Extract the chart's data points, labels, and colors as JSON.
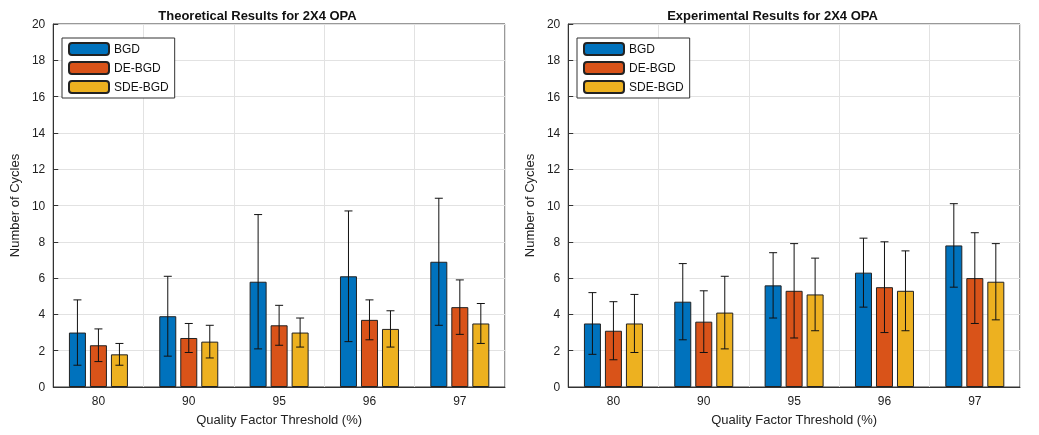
{
  "chart_data": [
    {
      "type": "bar",
      "title": "Theoretical Results for 2X4 OPA",
      "xlabel": "Quality Factor Threshold (%)",
      "ylabel": "Number of Cycles",
      "categories": [
        "80",
        "90",
        "95",
        "96",
        "97"
      ],
      "ylim": [
        0,
        20
      ],
      "yticks": [
        0,
        2,
        4,
        6,
        8,
        10,
        12,
        14,
        16,
        18,
        20
      ],
      "grid": true,
      "legend": "top left",
      "series": [
        {
          "name": "BGD",
          "color": "#0072bd",
          "values": [
            3.0,
            3.9,
            5.8,
            6.1,
            6.9
          ],
          "errors": [
            1.8,
            2.2,
            3.7,
            3.6,
            3.5
          ]
        },
        {
          "name": "DE-BGD",
          "color": "#d95319",
          "values": [
            2.3,
            2.7,
            3.4,
            3.7,
            4.4
          ],
          "errors": [
            0.9,
            0.8,
            1.1,
            1.1,
            1.5
          ]
        },
        {
          "name": "SDE-BGD",
          "color": "#edb120",
          "values": [
            1.8,
            2.5,
            3.0,
            3.2,
            3.5
          ],
          "errors": [
            0.6,
            0.9,
            0.8,
            1.0,
            1.1
          ]
        }
      ]
    },
    {
      "type": "bar",
      "title": "Experimental Results for 2X4 OPA",
      "xlabel": "Quality Factor Threshold (%)",
      "ylabel": "Number of Cycles",
      "categories": [
        "80",
        "90",
        "95",
        "96",
        "97"
      ],
      "ylim": [
        0,
        20
      ],
      "yticks": [
        0,
        2,
        4,
        6,
        8,
        10,
        12,
        14,
        16,
        18,
        20
      ],
      "grid": true,
      "legend": "top left",
      "series": [
        {
          "name": "BGD",
          "color": "#0072bd",
          "values": [
            3.5,
            4.7,
            5.6,
            6.3,
            7.8
          ],
          "errors": [
            1.7,
            2.1,
            1.8,
            1.9,
            2.3
          ]
        },
        {
          "name": "DE-BGD",
          "color": "#d95319",
          "values": [
            3.1,
            3.6,
            5.3,
            5.5,
            6.0
          ],
          "errors": [
            1.6,
            1.7,
            2.6,
            2.5,
            2.5
          ]
        },
        {
          "name": "SDE-BGD",
          "color": "#edb120",
          "values": [
            3.5,
            4.1,
            5.1,
            5.3,
            5.8
          ],
          "errors": [
            1.6,
            2.0,
            2.0,
            2.2,
            2.1
          ]
        }
      ]
    }
  ]
}
